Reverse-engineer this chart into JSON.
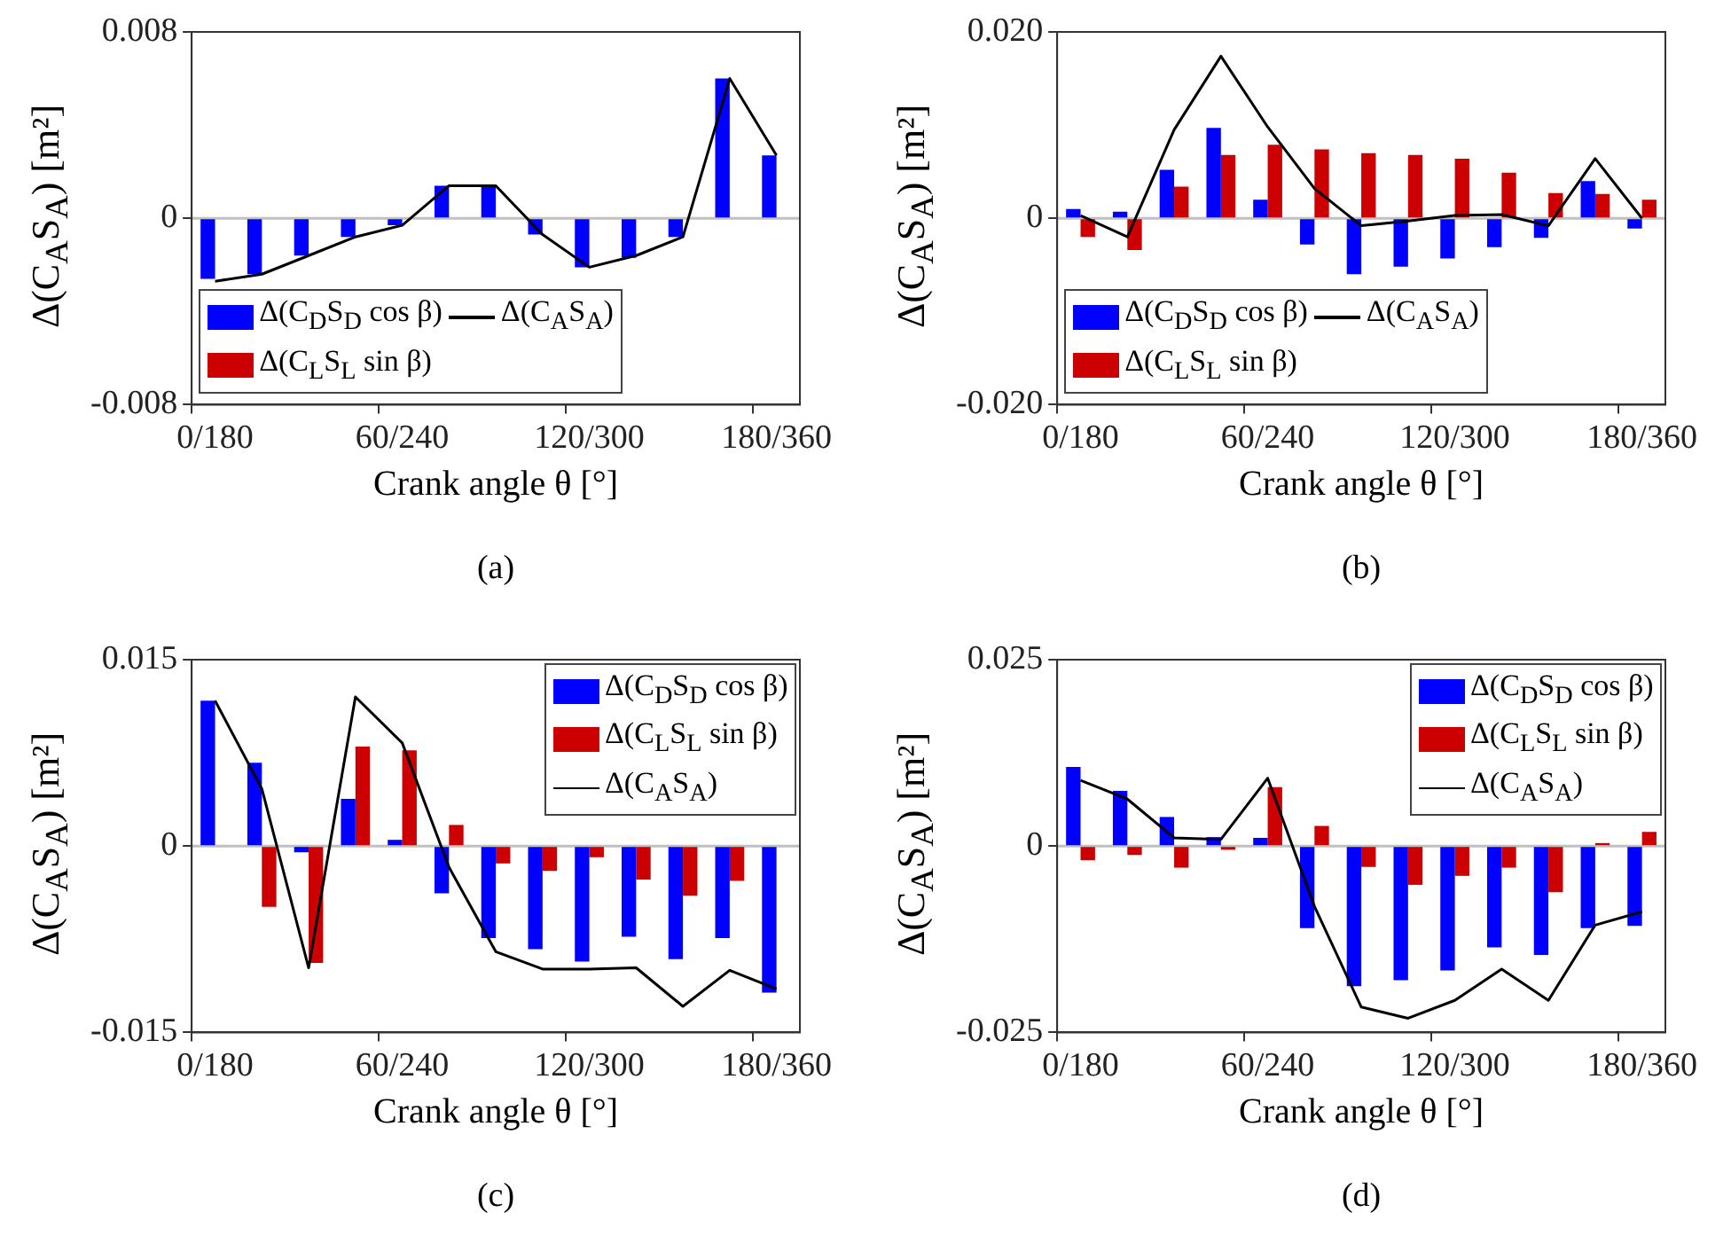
{
  "chart_data": [
    {
      "type": "bar",
      "ylabel": "Δ(C$_{A}$S$_{A}$) [m²]",
      "xlabel": "Crank angle θ [°]",
      "annotations": [
        "(a)"
      ],
      "categories": [
        "0/180",
        null,
        null,
        null,
        "60/240",
        null,
        null,
        null,
        "120/300",
        null,
        null,
        null,
        "180/360"
      ],
      "ylim": [
        -0.008,
        0.008
      ],
      "yticks": [
        -0.008,
        0,
        0.008
      ],
      "legend": "bottom left",
      "ref_lines": [
        {
          "axis": "y",
          "value": 0,
          "color": "#c0c0c0"
        }
      ],
      "series": [
        {
          "name": "Δ(C$_{D}$S$_{D}$ cos β)",
          "color": "#0000ff",
          "values": [
            -0.0026,
            -0.0024,
            -0.0016,
            -0.0008,
            -0.0003,
            0.0014,
            0.0014,
            -0.0007,
            -0.0021,
            -0.0017,
            -0.0008,
            0.006,
            0.0027
          ]
        },
        {
          "name": "Δ(C$_{A}$S$_{A}$)",
          "type": "line",
          "color": "#000000",
          "values": [
            -0.0027,
            -0.0024,
            -0.0016,
            -0.0008,
            -0.0003,
            0.0014,
            0.0014,
            -0.0007,
            -0.0021,
            -0.0016,
            -0.0008,
            0.006,
            0.0027
          ]
        },
        {
          "name": "Δ(C$_{L}$S$_{L}$ sin β)",
          "color": "#cc0000",
          "values": [
            0,
            0,
            0,
            0,
            0,
            0,
            0,
            0,
            0,
            0,
            0,
            0,
            0
          ]
        }
      ]
    },
    {
      "type": "bar",
      "ylabel": "Δ(C$_{A}$S$_{A}$) [m²]",
      "xlabel": "Crank angle θ [°]",
      "annotations": [
        "(b)"
      ],
      "categories": [
        "0/180",
        null,
        null,
        null,
        "60/240",
        null,
        null,
        null,
        "120/300",
        null,
        null,
        null,
        "180/360"
      ],
      "ylim": [
        -0.02,
        0.02
      ],
      "yticks": [
        {
          "value": -0.02,
          "label": "-0.020"
        },
        0,
        {
          "value": 0.02,
          "label": "0.020"
        }
      ],
      "legend": "bottom left",
      "ref_lines": [
        {
          "axis": "y",
          "value": 0,
          "color": "#c0c0c0"
        }
      ],
      "series": [
        {
          "name": "Δ(C$_{D}$S$_{D}$ cos β)",
          "color": "#0000ff",
          "values": [
            0.001,
            0.0007,
            0.0052,
            0.0097,
            0.002,
            -0.0028,
            -0.006,
            -0.0052,
            -0.0043,
            -0.0031,
            -0.0021,
            0.004,
            -0.0011
          ]
        },
        {
          "name": "Δ(C$_{A}$S$_{A}$)",
          "type": "line",
          "color": "#000000",
          "values": [
            0.0003,
            -0.002,
            0.0095,
            0.0174,
            0.0098,
            0.0032,
            -0.0008,
            -0.0003,
            0.0003,
            0.0004,
            -0.0008,
            0.0064,
            0
          ]
        },
        {
          "name": "Δ(C$_{L}$S$_{L}$ sin β)",
          "color": "#cc0000",
          "values": [
            -0.002,
            -0.0034,
            0.0034,
            0.0068,
            0.0079,
            0.0074,
            0.007,
            0.0068,
            0.0064,
            0.0049,
            0.0027,
            0.0026,
            0.002
          ]
        }
      ]
    },
    {
      "type": "bar",
      "ylabel": "Δ(C$_{A}$S$_{A}$) [m²]",
      "xlabel": "Crank angle θ [°]",
      "annotations": [
        "(c)"
      ],
      "categories": [
        "0/180",
        null,
        null,
        null,
        "60/240",
        null,
        null,
        null,
        "120/300",
        null,
        null,
        null,
        "180/360"
      ],
      "ylim": [
        -0.015,
        0.015
      ],
      "yticks": [
        -0.015,
        0,
        0.015
      ],
      "legend": "top right",
      "ref_lines": [
        {
          "axis": "y",
          "value": 0,
          "color": "#c0c0c0"
        }
      ],
      "series": [
        {
          "name": "Δ(C$_{D}$S$_{D}$ cos β)",
          "color": "#0000ff",
          "values": [
            0.0117,
            0.0067,
            -0.0005,
            0.0038,
            0.0005,
            -0.0038,
            -0.0074,
            -0.0083,
            -0.0093,
            -0.0073,
            -0.0091,
            -0.0074,
            -0.0118
          ]
        },
        {
          "name": "Δ(C$_{L}$S$_{L}$ sin β)",
          "color": "#cc0000",
          "values": [
            0,
            -0.0049,
            -0.0094,
            0.008,
            0.0077,
            0.0017,
            -0.0014,
            -0.002,
            -0.0009,
            -0.0027,
            -0.004,
            -0.0028,
            0
          ]
        },
        {
          "name": "Δ(C$_{A}$S$_{A}$)",
          "type": "line",
          "color": "#000000",
          "values": [
            0.0117,
            0.0046,
            -0.0098,
            0.012,
            0.0083,
            -0.0017,
            -0.0085,
            -0.0099,
            -0.0099,
            -0.0098,
            -0.0129,
            -0.01,
            -0.0115
          ]
        }
      ]
    },
    {
      "type": "bar",
      "ylabel": "Δ(C$_{A}$S$_{A}$) [m²]",
      "xlabel": "Crank angle θ [°]",
      "annotations": [
        "(d)"
      ],
      "categories": [
        "0/180",
        null,
        null,
        null,
        "60/240",
        null,
        null,
        null,
        "120/300",
        null,
        null,
        null,
        "180/360"
      ],
      "ylim": [
        -0.025,
        0.025
      ],
      "yticks": [
        -0.025,
        0,
        0.025
      ],
      "legend": "top right",
      "ref_lines": [
        {
          "axis": "y",
          "value": 0,
          "color": "#c0c0c0"
        }
      ],
      "series": [
        {
          "name": "Δ(C$_{D}$S$_{D}$ cos β)",
          "color": "#0000ff",
          "values": [
            0.0106,
            0.0074,
            0.0039,
            0.0012,
            0.0011,
            -0.011,
            -0.0188,
            -0.018,
            -0.0167,
            -0.0136,
            -0.0146,
            -0.011,
            -0.0107
          ]
        },
        {
          "name": "Δ(C$_{L}$S$_{L}$ sin β)",
          "color": "#cc0000",
          "values": [
            -0.0019,
            -0.0012,
            -0.0029,
            -0.0005,
            0.0079,
            0.0027,
            -0.0028,
            -0.0052,
            -0.004,
            -0.0029,
            -0.0062,
            0.0004,
            0.0019
          ]
        },
        {
          "name": "Δ(C$_{A}$S$_{A}$)",
          "type": "line",
          "color": "#000000",
          "values": [
            0.0088,
            0.0063,
            0.0011,
            0.0009,
            0.0091,
            -0.0081,
            -0.0216,
            -0.0231,
            -0.0207,
            -0.0165,
            -0.0207,
            -0.0106,
            -0.0088
          ]
        }
      ]
    }
  ]
}
